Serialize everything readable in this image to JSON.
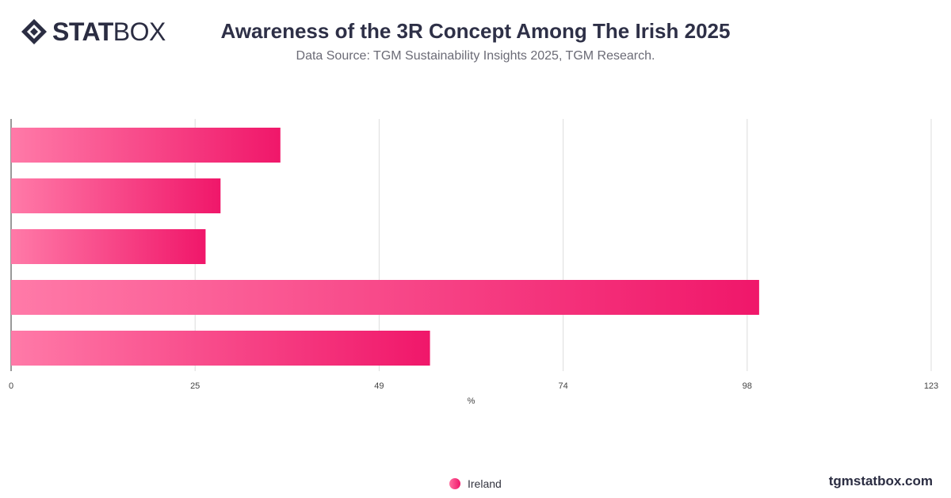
{
  "header": {
    "logo_strong": "STAT",
    "logo_light": "BOX",
    "title": "Awareness of the 3R Concept Among The Irish 2025",
    "subtitle": "Data Source: TGM Sustainability Insights 2025, TGM Research."
  },
  "footer": {
    "brand": "tgmstatbox.com"
  },
  "chart_data": {
    "type": "bar",
    "orientation": "horizontal",
    "title": "Awareness of the 3R Concept Among The Irish 2025",
    "subtitle": "Data Source: TGM Sustainability Insights 2025, TGM Research.",
    "xlabel": "%",
    "ylabel": "",
    "xlim": [
      0,
      123
    ],
    "x_ticks": [
      "0",
      "25",
      "49",
      "74",
      "98",
      "123"
    ],
    "grid": true,
    "legend_position": "bottom",
    "categories": [
      "",
      "",
      "",
      "",
      ""
    ],
    "series": [
      {
        "name": "Ireland",
        "values": [
          36,
          28,
          26,
          100,
          56
        ],
        "color_start": "#ff7aa8",
        "color_end": "#f0176a"
      }
    ]
  }
}
